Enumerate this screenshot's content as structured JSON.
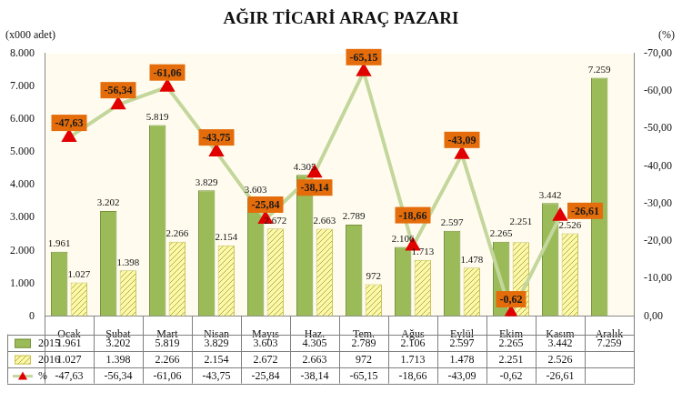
{
  "chart_data": {
    "type": "bar",
    "title": "AĞIR TİCARİ ARAÇ PAZARI",
    "y_label": "(x000 adet)",
    "y2_label": "(%)",
    "categories": [
      "Ocak",
      "Şubat",
      "Mart",
      "Nisan",
      "Mayıs",
      "Haz.",
      "Tem.",
      "Ağus",
      "Eylül",
      "Ekim",
      "Kasım",
      "Aralık"
    ],
    "series": [
      {
        "name": "2015",
        "type": "bar",
        "color": "#9bbb59",
        "values": [
          1961,
          3202,
          5819,
          3829,
          3603,
          4305,
          2789,
          2106,
          2597,
          2265,
          3442,
          7259
        ],
        "value_labels": [
          "1.961",
          "3.202",
          "5.819",
          "3.829",
          "3.603",
          "4.305",
          "2.789",
          "2.106",
          "2.597",
          "2.265",
          "3.442",
          "7.259"
        ]
      },
      {
        "name": "2016",
        "type": "bar",
        "color": "#fbf8a8",
        "values": [
          1027,
          1398,
          2266,
          2154,
          2672,
          2663,
          972,
          1713,
          1478,
          2251,
          2526,
          null
        ],
        "value_labels": [
          "1.027",
          "1.398",
          "2.266",
          "2.154",
          "2.672",
          "2.663",
          "972",
          "1.713",
          "1.478",
          "2.251",
          "2.526",
          null
        ]
      },
      {
        "name": "%",
        "type": "line",
        "axis": "y2",
        "color": "#c3d69b",
        "marker": "triangle",
        "line_style": "solid",
        "values": [
          -47.63,
          -56.34,
          -61.06,
          -43.75,
          -25.84,
          -38.14,
          -65.15,
          -18.66,
          -43.09,
          -0.62,
          -26.61,
          null
        ],
        "value_labels": [
          "-47,63",
          "-56,34",
          "-61,06",
          "-43,75",
          "-25,84",
          "-38,14",
          "-65,15",
          "-18,66",
          "-43,09",
          "-0,62",
          "-26,61",
          null
        ]
      }
    ],
    "ylim": [
      0,
      8000
    ],
    "yticks": [
      0,
      {
        "value": 1000,
        "label": "1.000"
      },
      {
        "value": 2000,
        "label": "2.000"
      },
      {
        "value": 3000,
        "label": "3.000"
      },
      {
        "value": 4000,
        "label": "4.000"
      },
      {
        "value": 5000,
        "label": "5.000"
      },
      {
        "value": 6000,
        "label": "6.000"
      },
      {
        "value": 7000,
        "label": "7.000"
      },
      {
        "value": 8000,
        "label": "8.000"
      }
    ],
    "y2lim": [
      0,
      -70
    ],
    "y2ticks": [
      {
        "value": 0,
        "label": "0,00"
      },
      {
        "value": -10,
        "label": "-10,00"
      },
      {
        "value": -20,
        "label": "-20,00"
      },
      {
        "value": -30,
        "label": "-30,00"
      },
      {
        "value": -40,
        "label": "-40,00"
      },
      {
        "value": -50,
        "label": "-50,00"
      },
      {
        "value": -60,
        "label": "-60,00"
      },
      {
        "value": -70,
        "label": "-70,00"
      }
    ],
    "grid": false,
    "data_labels": true
  }
}
